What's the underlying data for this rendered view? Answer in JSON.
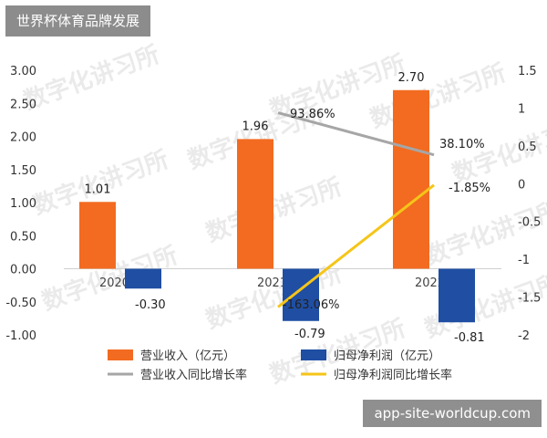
{
  "header": {
    "title": "世界杯体育品牌发展"
  },
  "footer": {
    "source": "app-site-worldcup.com"
  },
  "watermark": "数字化讲习所",
  "colors": {
    "revenue": "#f26b21",
    "profit": "#1f4ea3",
    "revenue_growth": "#a6a6a6",
    "profit_growth": "#f5c518"
  },
  "chart_data": {
    "type": "bar",
    "categories": [
      "2020年",
      "2021年",
      "2022年"
    ],
    "left_axis": {
      "ylim": [
        -1.0,
        3.0
      ],
      "ticks": [
        "3.00",
        "2.50",
        "2.00",
        "1.50",
        "1.00",
        "0.50",
        "0.00",
        "-0.50",
        "-1.00"
      ]
    },
    "right_axis": {
      "ylim": [
        -2,
        1.5
      ],
      "ticks": [
        "1.5",
        "1",
        "0.5",
        "0",
        "-0.5",
        "-1",
        "-1.5",
        "-2"
      ]
    },
    "bar_series": [
      {
        "name": "营业收入（亿元）",
        "values": [
          1.01,
          1.96,
          2.7
        ],
        "labels": [
          "1.01",
          "1.96",
          "2.70"
        ]
      },
      {
        "name": "归母净利润（亿元）",
        "values": [
          -0.3,
          -0.79,
          -0.81
        ],
        "labels": [
          "-0.30",
          "-0.79",
          "-0.81"
        ]
      }
    ],
    "line_series": [
      {
        "name": "营业收入同比增长率",
        "categories": [
          "2021年",
          "2022年"
        ],
        "values": [
          0.9386,
          0.381
        ],
        "labels": [
          "93.86%",
          "38.10%"
        ]
      },
      {
        "name": "归母净利润同比增长率",
        "categories": [
          "2021年",
          "2022年"
        ],
        "values": [
          -1.6306,
          -0.0185
        ],
        "labels": [
          "-163.06%",
          "-1.85%"
        ]
      }
    ],
    "legend_position": "bottom",
    "grid": false
  }
}
